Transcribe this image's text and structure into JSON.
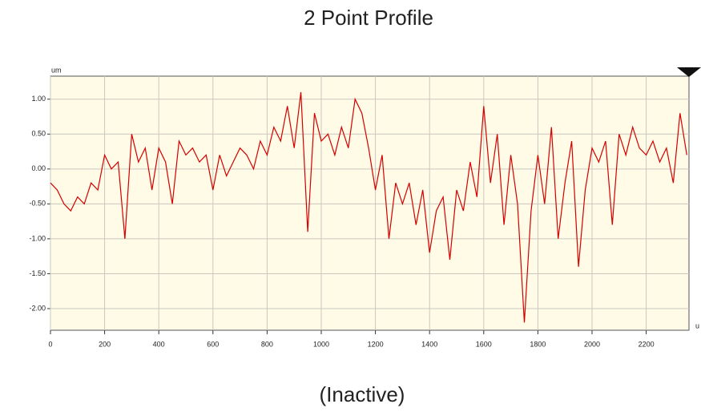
{
  "chart_data": {
    "type": "line",
    "title": "2 Point Profile",
    "status": "(Inactive)",
    "y_label": "um",
    "x_label": "u",
    "x": [
      0,
      25,
      50,
      75,
      100,
      125,
      150,
      175,
      200,
      225,
      250,
      275,
      300,
      325,
      350,
      375,
      400,
      425,
      450,
      475,
      500,
      525,
      550,
      575,
      600,
      625,
      650,
      675,
      700,
      725,
      750,
      775,
      800,
      825,
      850,
      875,
      900,
      925,
      950,
      975,
      1000,
      1025,
      1050,
      1075,
      1100,
      1125,
      1150,
      1175,
      1200,
      1225,
      1250,
      1275,
      1300,
      1325,
      1350,
      1375,
      1400,
      1425,
      1450,
      1475,
      1500,
      1525,
      1550,
      1575,
      1600,
      1625,
      1650,
      1675,
      1700,
      1725,
      1750,
      1775,
      1800,
      1825,
      1850,
      1875,
      1900,
      1925,
      1950,
      1975,
      2000,
      2025,
      2050,
      2075,
      2100,
      2125,
      2150,
      2175,
      2200,
      2225,
      2250,
      2275,
      2300,
      2325,
      2350
    ],
    "series": [
      {
        "color": "#d40000",
        "values": [
          -0.2,
          -0.3,
          -0.5,
          -0.6,
          -0.4,
          -0.5,
          -0.2,
          -0.3,
          0.2,
          0.0,
          0.1,
          -1.0,
          0.5,
          0.1,
          0.3,
          -0.3,
          0.3,
          0.1,
          -0.5,
          0.4,
          0.2,
          0.3,
          0.1,
          0.2,
          -0.3,
          0.2,
          -0.1,
          0.1,
          0.3,
          0.2,
          0.0,
          0.4,
          0.2,
          0.6,
          0.4,
          0.9,
          0.3,
          1.1,
          -0.9,
          0.8,
          0.4,
          0.5,
          0.2,
          0.6,
          0.3,
          1.0,
          0.8,
          0.3,
          -0.3,
          0.2,
          -1.0,
          -0.2,
          -0.5,
          -0.2,
          -0.8,
          -0.3,
          -1.2,
          -0.6,
          -0.4,
          -1.3,
          -0.3,
          -0.6,
          0.1,
          -0.4,
          0.9,
          -0.2,
          0.5,
          -0.8,
          0.2,
          -0.5,
          -2.2,
          -0.6,
          0.2,
          -0.5,
          0.6,
          -1.0,
          -0.2,
          0.4,
          -1.4,
          -0.3,
          0.3,
          0.1,
          0.4,
          -0.8,
          0.5,
          0.2,
          0.6,
          0.3,
          0.2,
          0.4,
          0.1,
          0.3,
          -0.2,
          0.8,
          0.2
        ]
      }
    ],
    "xlim": [
      0,
      2358
    ],
    "ylim": [
      -2.31,
      1.33
    ],
    "xticks": [
      0,
      200,
      400,
      600,
      800,
      1000,
      1200,
      1400,
      1600,
      1800,
      2000,
      2200
    ],
    "yticks": [
      {
        "value": 1,
        "label": "1.00"
      },
      {
        "value": 0.5,
        "label": "0.50"
      },
      {
        "value": 0,
        "label": "0.00"
      },
      {
        "value": -0.5,
        "label": "-0.50"
      },
      {
        "value": -1,
        "label": "-1.00"
      },
      {
        "value": -1.5,
        "label": "-1.50"
      },
      {
        "value": -2,
        "label": "-2.00"
      }
    ],
    "grid": true
  }
}
